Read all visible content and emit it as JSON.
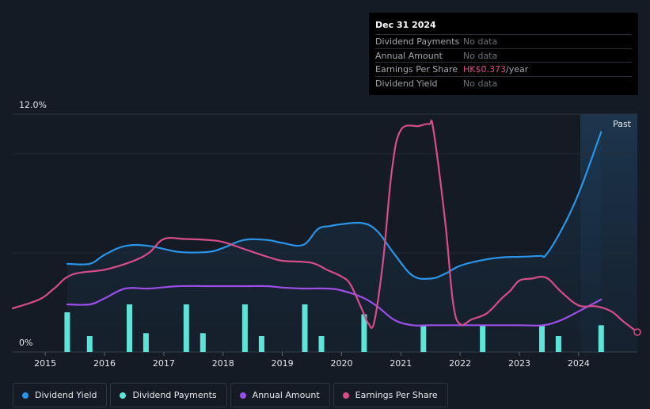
{
  "tooltip": {
    "date": "Dec 31 2024",
    "rows": [
      {
        "label": "Dividend Payments",
        "value": "No data"
      },
      {
        "label": "Annual Amount",
        "value": "No data"
      },
      {
        "label": "Earnings Per Share",
        "value": "HK$0.373",
        "unit": "/year"
      },
      {
        "label": "Dividend Yield",
        "value": "No data"
      }
    ]
  },
  "legend": [
    {
      "label": "Dividend Yield",
      "color": "#2a95e8"
    },
    {
      "label": "Dividend Payments",
      "color": "#5de3d8"
    },
    {
      "label": "Annual Amount",
      "color": "#9b4fe8"
    },
    {
      "label": "Earnings Per Share",
      "color": "#d74d8a"
    }
  ],
  "chart_data": {
    "type": "line",
    "title": "",
    "xlabel": "",
    "ylabel": "",
    "y_top_label": "12.0%",
    "y_bottom_label": "0%",
    "past_label": "Past",
    "ylim": [
      0,
      12
    ],
    "xlim": [
      2014.45,
      2024.99
    ],
    "x_ticks": [
      2015,
      2016,
      2017,
      2018,
      2019,
      2020,
      2021,
      2022,
      2023,
      2024
    ],
    "x_tick_labels": [
      "2015",
      "2016",
      "2017",
      "2018",
      "2019",
      "2020",
      "2021",
      "2022",
      "2023",
      "2024"
    ],
    "past_region_start": 2024.0,
    "colors": {
      "yield": "#2a95e8",
      "payments": "#5de3d8",
      "annual": "#9b4fe8",
      "eps": "#d74d8a"
    },
    "series": [
      {
        "name": "Dividend Yield",
        "key": "yield",
        "unit": "%",
        "points": [
          [
            2015.37,
            4.45
          ],
          [
            2015.75,
            4.45
          ],
          [
            2016.0,
            4.9
          ],
          [
            2016.35,
            5.35
          ],
          [
            2016.75,
            5.35
          ],
          [
            2017.25,
            5.05
          ],
          [
            2017.75,
            5.05
          ],
          [
            2018.0,
            5.25
          ],
          [
            2018.35,
            5.65
          ],
          [
            2018.75,
            5.65
          ],
          [
            2019.0,
            5.5
          ],
          [
            2019.35,
            5.4
          ],
          [
            2019.6,
            6.2
          ],
          [
            2019.8,
            6.35
          ],
          [
            2020.0,
            6.45
          ],
          [
            2020.35,
            6.5
          ],
          [
            2020.6,
            6.1
          ],
          [
            2020.9,
            4.9
          ],
          [
            2021.2,
            3.85
          ],
          [
            2021.5,
            3.7
          ],
          [
            2021.75,
            3.95
          ],
          [
            2022.0,
            4.35
          ],
          [
            2022.4,
            4.65
          ],
          [
            2022.75,
            4.78
          ],
          [
            2023.0,
            4.8
          ],
          [
            2023.35,
            4.85
          ],
          [
            2023.45,
            4.9
          ],
          [
            2023.7,
            6.1
          ],
          [
            2024.0,
            8.0
          ],
          [
            2024.38,
            11.1
          ]
        ]
      },
      {
        "name": "Annual Amount",
        "key": "annual",
        "unit": "%",
        "points": [
          [
            2015.37,
            2.4
          ],
          [
            2015.75,
            2.4
          ],
          [
            2016.0,
            2.7
          ],
          [
            2016.35,
            3.2
          ],
          [
            2016.75,
            3.2
          ],
          [
            2017.25,
            3.32
          ],
          [
            2017.75,
            3.32
          ],
          [
            2018.0,
            3.32
          ],
          [
            2018.35,
            3.32
          ],
          [
            2018.75,
            3.32
          ],
          [
            2019.0,
            3.25
          ],
          [
            2019.35,
            3.2
          ],
          [
            2019.75,
            3.2
          ],
          [
            2020.0,
            3.1
          ],
          [
            2020.35,
            2.75
          ],
          [
            2020.6,
            2.3
          ],
          [
            2020.9,
            1.6
          ],
          [
            2021.2,
            1.35
          ],
          [
            2021.5,
            1.35
          ],
          [
            2022.0,
            1.35
          ],
          [
            2022.5,
            1.35
          ],
          [
            2023.0,
            1.35
          ],
          [
            2023.4,
            1.35
          ],
          [
            2023.7,
            1.6
          ],
          [
            2024.0,
            2.05
          ],
          [
            2024.38,
            2.65
          ]
        ]
      },
      {
        "name": "Earnings Per Share",
        "key": "eps",
        "unit": "scaled",
        "points": [
          [
            2014.45,
            2.2
          ],
          [
            2014.9,
            2.65
          ],
          [
            2015.15,
            3.2
          ],
          [
            2015.45,
            3.9
          ],
          [
            2016.0,
            4.15
          ],
          [
            2016.45,
            4.55
          ],
          [
            2016.75,
            5.0
          ],
          [
            2017.0,
            5.7
          ],
          [
            2017.35,
            5.7
          ],
          [
            2017.75,
            5.65
          ],
          [
            2018.0,
            5.55
          ],
          [
            2018.35,
            5.2
          ],
          [
            2018.75,
            4.8
          ],
          [
            2019.0,
            4.6
          ],
          [
            2019.35,
            4.55
          ],
          [
            2019.55,
            4.45
          ],
          [
            2019.75,
            4.15
          ],
          [
            2020.0,
            3.8
          ],
          [
            2020.15,
            3.4
          ],
          [
            2020.35,
            2.1
          ],
          [
            2020.45,
            1.45
          ],
          [
            2020.55,
            1.5
          ],
          [
            2020.7,
            4.6
          ],
          [
            2020.85,
            9.2
          ],
          [
            2021.0,
            11.2
          ],
          [
            2021.3,
            11.4
          ],
          [
            2021.48,
            11.5
          ],
          [
            2021.55,
            11.2
          ],
          [
            2021.75,
            6.5
          ],
          [
            2021.88,
            2.5
          ],
          [
            2022.0,
            1.4
          ],
          [
            2022.2,
            1.65
          ],
          [
            2022.45,
            1.95
          ],
          [
            2022.7,
            2.7
          ],
          [
            2022.85,
            3.1
          ],
          [
            2023.0,
            3.6
          ],
          [
            2023.2,
            3.7
          ],
          [
            2023.45,
            3.75
          ],
          [
            2023.7,
            3.05
          ],
          [
            2024.0,
            2.35
          ],
          [
            2024.3,
            2.3
          ],
          [
            2024.55,
            2.05
          ],
          [
            2024.75,
            1.55
          ],
          [
            2024.99,
            1.0
          ]
        ]
      }
    ],
    "payments": {
      "name": "Dividend Payments",
      "key": "payments",
      "x": [
        2015.37,
        2015.75,
        2016.42,
        2016.7,
        2017.38,
        2017.66,
        2018.37,
        2018.65,
        2019.38,
        2019.66,
        2020.38,
        2021.38,
        2022.38,
        2023.38,
        2023.66,
        2024.38
      ],
      "values": [
        2.0,
        0.8,
        2.4,
        0.95,
        2.4,
        0.95,
        2.4,
        0.8,
        2.4,
        0.8,
        1.9,
        1.35,
        1.35,
        1.35,
        0.8,
        1.35
      ]
    }
  }
}
